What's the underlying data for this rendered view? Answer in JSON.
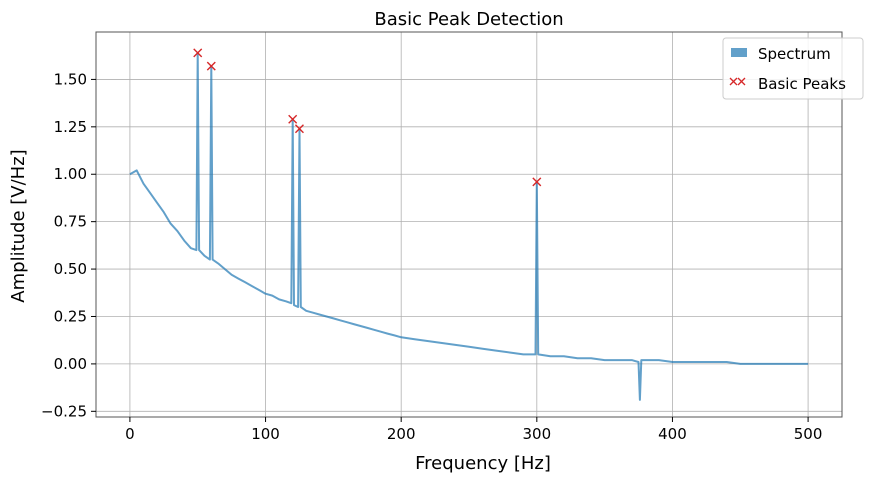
{
  "chart_data": {
    "type": "line",
    "title": "Basic Peak Detection",
    "xlabel": "Frequency [Hz]",
    "ylabel": "Amplitude [V/Hz]",
    "xlim": [
      -25,
      525
    ],
    "ylim": [
      -0.28,
      1.75
    ],
    "xticks": [
      0,
      100,
      200,
      300,
      400,
      500
    ],
    "yticks": [
      -0.25,
      0.0,
      0.25,
      0.5,
      0.75,
      1.0,
      1.25,
      1.5
    ],
    "xtick_labels": [
      "0",
      "100",
      "200",
      "300",
      "400",
      "500"
    ],
    "ytick_labels": [
      "−0.25",
      "0.00",
      "0.25",
      "0.50",
      "0.75",
      "1.00",
      "1.25",
      "1.50"
    ],
    "grid": true,
    "legend_position": "top-right",
    "colors": {
      "spectrum": "#1f77b4",
      "peaks": "#d62728"
    },
    "series": [
      {
        "name": "Spectrum",
        "kind": "line",
        "alpha": 0.7,
        "x": [
          0,
          5,
          10,
          15,
          20,
          25,
          30,
          35,
          40,
          45,
          49,
          50,
          51,
          55,
          59,
          60,
          61,
          65,
          70,
          75,
          80,
          85,
          90,
          95,
          100,
          105,
          110,
          115,
          119,
          120,
          121,
          124,
          125,
          126,
          130,
          135,
          140,
          145,
          150,
          155,
          160,
          165,
          170,
          175,
          180,
          185,
          190,
          195,
          200,
          210,
          220,
          230,
          240,
          250,
          260,
          270,
          280,
          290,
          299,
          300,
          301,
          310,
          320,
          330,
          340,
          350,
          360,
          370,
          375,
          376,
          377,
          380,
          390,
          400,
          410,
          420,
          430,
          440,
          450,
          460,
          470,
          480,
          490,
          500
        ],
        "y": [
          1.0,
          1.02,
          0.95,
          0.9,
          0.85,
          0.8,
          0.74,
          0.7,
          0.65,
          0.61,
          0.6,
          1.64,
          0.6,
          0.57,
          0.55,
          1.57,
          0.55,
          0.53,
          0.5,
          0.47,
          0.45,
          0.43,
          0.41,
          0.39,
          0.37,
          0.36,
          0.34,
          0.33,
          0.32,
          1.29,
          0.31,
          0.3,
          1.24,
          0.3,
          0.28,
          0.27,
          0.26,
          0.25,
          0.24,
          0.23,
          0.22,
          0.21,
          0.2,
          0.19,
          0.18,
          0.17,
          0.16,
          0.15,
          0.14,
          0.13,
          0.12,
          0.11,
          0.1,
          0.09,
          0.08,
          0.07,
          0.06,
          0.05,
          0.05,
          0.96,
          0.05,
          0.04,
          0.04,
          0.03,
          0.03,
          0.02,
          0.02,
          0.02,
          0.01,
          -0.19,
          0.02,
          0.02,
          0.02,
          0.01,
          0.01,
          0.01,
          0.01,
          0.01,
          0.0,
          0.0,
          0.0,
          0.0,
          0.0,
          0.0
        ]
      },
      {
        "name": "Basic Peaks",
        "kind": "markers",
        "marker": "x",
        "x": [
          50,
          60,
          120,
          125,
          300
        ],
        "y": [
          1.64,
          1.57,
          1.29,
          1.24,
          0.96
        ]
      }
    ]
  }
}
